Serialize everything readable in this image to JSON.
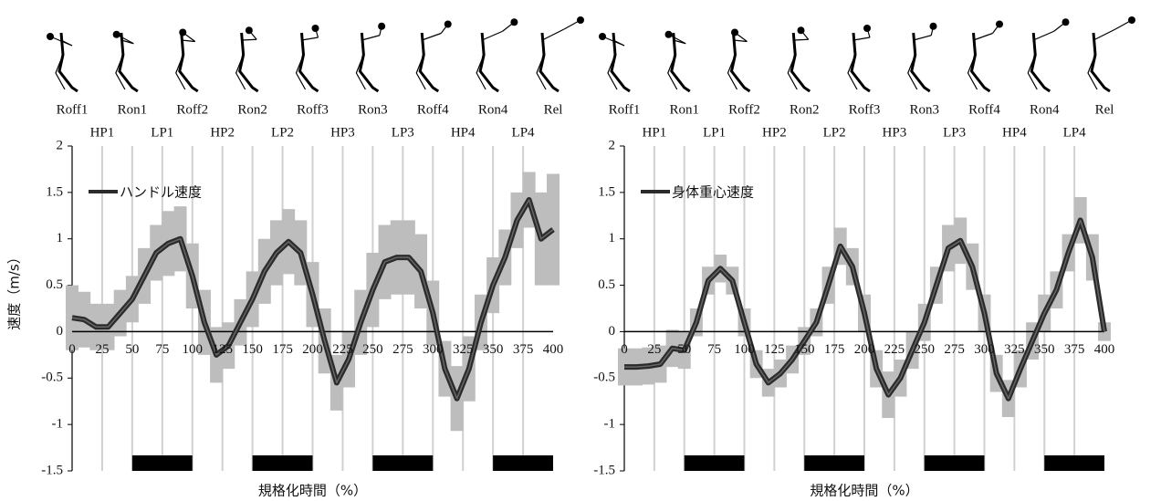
{
  "chart_data": [
    {
      "type": "line",
      "ylabel": "速度（m/s）",
      "xlabel": "規格化時間（%）",
      "event_labels": [
        "Roff1",
        "Ron1",
        "Roff2",
        "Ron2",
        "Roff3",
        "Ron3",
        "Roff4",
        "Ron4",
        "Rel"
      ],
      "phase_labels": [
        "HP1",
        "LP1",
        "HP2",
        "LP2",
        "HP3",
        "LP3",
        "HP4",
        "LP4"
      ],
      "x": [
        0,
        10,
        20,
        30,
        40,
        50,
        60,
        70,
        80,
        90,
        100,
        110,
        120,
        130,
        140,
        150,
        160,
        170,
        180,
        190,
        200,
        210,
        220,
        230,
        240,
        250,
        260,
        270,
        280,
        290,
        300,
        310,
        320,
        330,
        340,
        350,
        360,
        370,
        380,
        390,
        400
      ],
      "series": [
        {
          "name": "ハンドル速度",
          "color": "#2b2b2b",
          "values": [
            0.15,
            0.13,
            0.05,
            0.05,
            0.2,
            0.35,
            0.6,
            0.85,
            0.95,
            1.0,
            0.6,
            0.1,
            -0.25,
            -0.15,
            0.1,
            0.35,
            0.65,
            0.85,
            0.97,
            0.85,
            0.4,
            -0.1,
            -0.55,
            -0.3,
            0.1,
            0.45,
            0.75,
            0.8,
            0.8,
            0.65,
            0.2,
            -0.4,
            -0.72,
            -0.4,
            0.1,
            0.5,
            0.8,
            1.2,
            1.42,
            1.0,
            1.1
          ],
          "error": [
            0.35,
            0.3,
            0.25,
            0.25,
            0.25,
            0.25,
            0.3,
            0.3,
            0.35,
            0.35,
            0.35,
            0.35,
            0.3,
            0.25,
            0.25,
            0.3,
            0.35,
            0.35,
            0.35,
            0.35,
            0.35,
            0.35,
            0.3,
            0.3,
            0.35,
            0.4,
            0.4,
            0.4,
            0.4,
            0.4,
            0.35,
            0.3,
            0.35,
            0.35,
            0.3,
            0.3,
            0.3,
            0.3,
            0.3,
            0.5,
            0.6
          ],
          "error_color": "#bdbdbd"
        }
      ],
      "xlim": [
        0,
        400
      ],
      "ylim": [
        -1.5,
        2
      ],
      "xticks": [
        0,
        25,
        50,
        75,
        100,
        125,
        150,
        175,
        200,
        225,
        250,
        275,
        300,
        325,
        350,
        375,
        400
      ],
      "yticks": [
        2,
        1.5,
        1,
        0.5,
        0,
        -0.5,
        -1,
        -1.5
      ],
      "grid": true
    },
    {
      "type": "line",
      "xlabel": "規格化時間（%）",
      "event_labels": [
        "Roff1",
        "Ron1",
        "Roff2",
        "Ron2",
        "Roff3",
        "Ron3",
        "Roff4",
        "Ron4",
        "Rel"
      ],
      "phase_labels": [
        "HP1",
        "LP1",
        "HP2",
        "LP2",
        "HP3",
        "LP3",
        "HP4",
        "LP4"
      ],
      "x": [
        0,
        10,
        20,
        30,
        40,
        50,
        60,
        70,
        80,
        90,
        100,
        110,
        120,
        130,
        140,
        150,
        160,
        170,
        180,
        190,
        200,
        210,
        220,
        230,
        240,
        250,
        260,
        270,
        280,
        290,
        300,
        310,
        320,
        330,
        340,
        350,
        360,
        370,
        380,
        390,
        400
      ],
      "series": [
        {
          "name": "身体重心速度",
          "color": "#2b2b2b",
          "values": [
            -0.38,
            -0.38,
            -0.37,
            -0.35,
            -0.18,
            -0.2,
            0.1,
            0.55,
            0.68,
            0.55,
            0.1,
            -0.35,
            -0.55,
            -0.45,
            -0.3,
            -0.1,
            0.1,
            0.5,
            0.92,
            0.7,
            0.2,
            -0.4,
            -0.68,
            -0.5,
            -0.2,
            0.1,
            0.5,
            0.9,
            0.98,
            0.7,
            0.2,
            -0.45,
            -0.72,
            -0.4,
            -0.1,
            0.2,
            0.45,
            0.85,
            1.2,
            0.8,
            0
          ],
          "error": [
            0.2,
            0.2,
            0.2,
            0.2,
            0.2,
            0.2,
            0.15,
            0.15,
            0.15,
            0.15,
            0.15,
            0.15,
            0.15,
            0.15,
            0.15,
            0.15,
            0.15,
            0.2,
            0.2,
            0.2,
            0.2,
            0.2,
            0.25,
            0.2,
            0.2,
            0.2,
            0.2,
            0.25,
            0.25,
            0.25,
            0.2,
            0.2,
            0.2,
            0.2,
            0.2,
            0.2,
            0.2,
            0.2,
            0.25,
            0.25,
            0.1
          ],
          "error_color": "#bdbdbd"
        }
      ],
      "xlim": [
        0,
        400
      ],
      "ylim": [
        -1.5,
        2
      ],
      "xticks": [
        0,
        25,
        50,
        75,
        100,
        125,
        150,
        175,
        200,
        225,
        250,
        275,
        300,
        325,
        350,
        375,
        400
      ],
      "yticks": [
        2,
        1.5,
        1,
        0.5,
        0,
        -0.5,
        -1,
        -1.5
      ],
      "grid": true
    }
  ]
}
